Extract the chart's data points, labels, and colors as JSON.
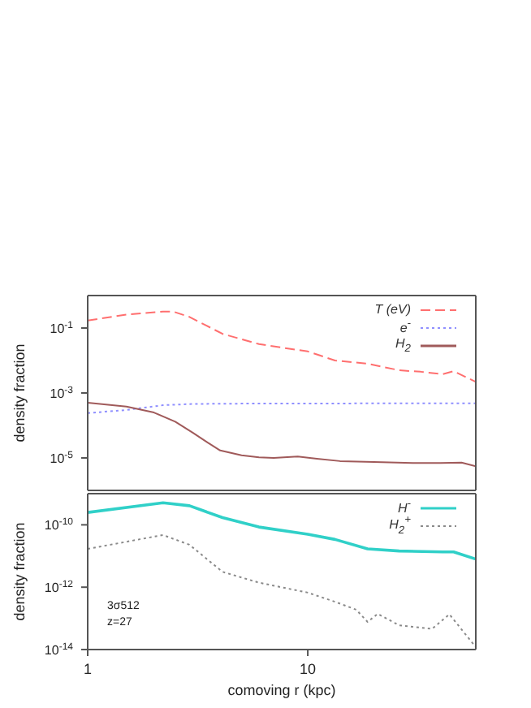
{
  "chart_data": [
    {
      "type": "line",
      "ylabel": "density fraction",
      "log": "xy",
      "legend": "top right",
      "tick_labels": "y",
      "xlim": [
        1,
        58
      ],
      "ylim": [
        1e-06,
        1
      ],
      "yticks": [
        {
          "value": 1e-05,
          "label": "10$^{-5}$"
        },
        {
          "value": 0.001,
          "label": "10$^{-3}$"
        },
        {
          "value": 0.1,
          "label": "10$^{-1}$"
        }
      ],
      "series": [
        {
          "name": "T (eV)",
          "color": "#ff6f6f",
          "line_style": "dashed",
          "x": [
            1,
            1.5,
            2.2,
            2.45,
            2.9,
            4.1,
            6,
            10,
            13.3,
            18.7,
            26,
            32.6,
            41,
            46,
            58
          ],
          "values": [
            0.17,
            0.26,
            0.32,
            0.32,
            0.22,
            0.066,
            0.032,
            0.019,
            0.01,
            0.008,
            0.005,
            0.0045,
            0.0038,
            0.0047,
            0.0022
          ]
        },
        {
          "name": "e$^{-}$",
          "color": "#8f8fff",
          "line_style": "dotted",
          "x": [
            1,
            1.5,
            2.2,
            3,
            5,
            10,
            20,
            40,
            58
          ],
          "values": [
            0.00024,
            0.0003,
            0.00042,
            0.00046,
            0.00047,
            0.00047,
            0.00048,
            0.00048,
            0.00048
          ]
        },
        {
          "name": "H$_{2}$",
          "color": "#a05a5a",
          "line_style": "solid",
          "x": [
            1,
            1.5,
            2,
            2.5,
            3,
            3.5,
            4,
            5,
            6,
            7,
            9,
            11,
            14,
            20,
            30,
            40,
            50,
            58
          ],
          "values": [
            0.0005,
            0.00038,
            0.00025,
            0.00013,
            6e-05,
            3e-05,
            1.7e-05,
            1.2e-05,
            1.05e-05,
            1e-05,
            1.1e-05,
            9.5e-06,
            8e-06,
            7.5e-06,
            7e-06,
            7e-06,
            7.2e-06,
            5.5e-06
          ]
        }
      ]
    },
    {
      "type": "line",
      "ylabel": "density fraction",
      "xlabel": "comoving r (kpc)",
      "log": "xy",
      "legend": "top right",
      "xlim": [
        1,
        58
      ],
      "xticks": [
        1,
        10
      ],
      "ylim": [
        1e-14,
        1e-09
      ],
      "yticks": [
        {
          "value": 1e-14,
          "label": "10$^{-14}$"
        },
        {
          "value": 1e-12,
          "label": "10$^{-12}$"
        },
        {
          "value": 1e-10,
          "label": "10$^{-10}$"
        }
      ],
      "annotations": [
        "3σ512",
        "z=27"
      ],
      "series": [
        {
          "name": "H$^{-}$",
          "color": "#30d0c8",
          "line_style": "solid",
          "x": [
            1,
            2.2,
            2.9,
            4.1,
            6,
            10,
            13.3,
            18.7,
            26,
            41,
            46,
            58
          ],
          "values": [
            2.5e-10,
            5.1e-10,
            4.1e-10,
            1.7e-10,
            8.5e-11,
            5e-11,
            3.4e-11,
            1.7e-11,
            1.45e-11,
            1.35e-11,
            1.35e-11,
            8e-12
          ]
        },
        {
          "name": "H$_{2}$$^{+}$",
          "color": "#8a8a8a",
          "line_style": "dotted",
          "x": [
            1,
            2.2,
            2.9,
            4.1,
            6,
            10,
            13.3,
            16.6,
            18.7,
            20.8,
            26,
            36.7,
            44,
            58
          ],
          "values": [
            1.7e-11,
            4.7e-11,
            2.3e-11,
            3.1e-12,
            1.4e-12,
            6.7e-13,
            3.4e-13,
            1.9e-13,
            7.7e-14,
            1.4e-13,
            6e-14,
            4.6e-14,
            1.35e-13,
            1.2e-14
          ]
        }
      ]
    }
  ]
}
